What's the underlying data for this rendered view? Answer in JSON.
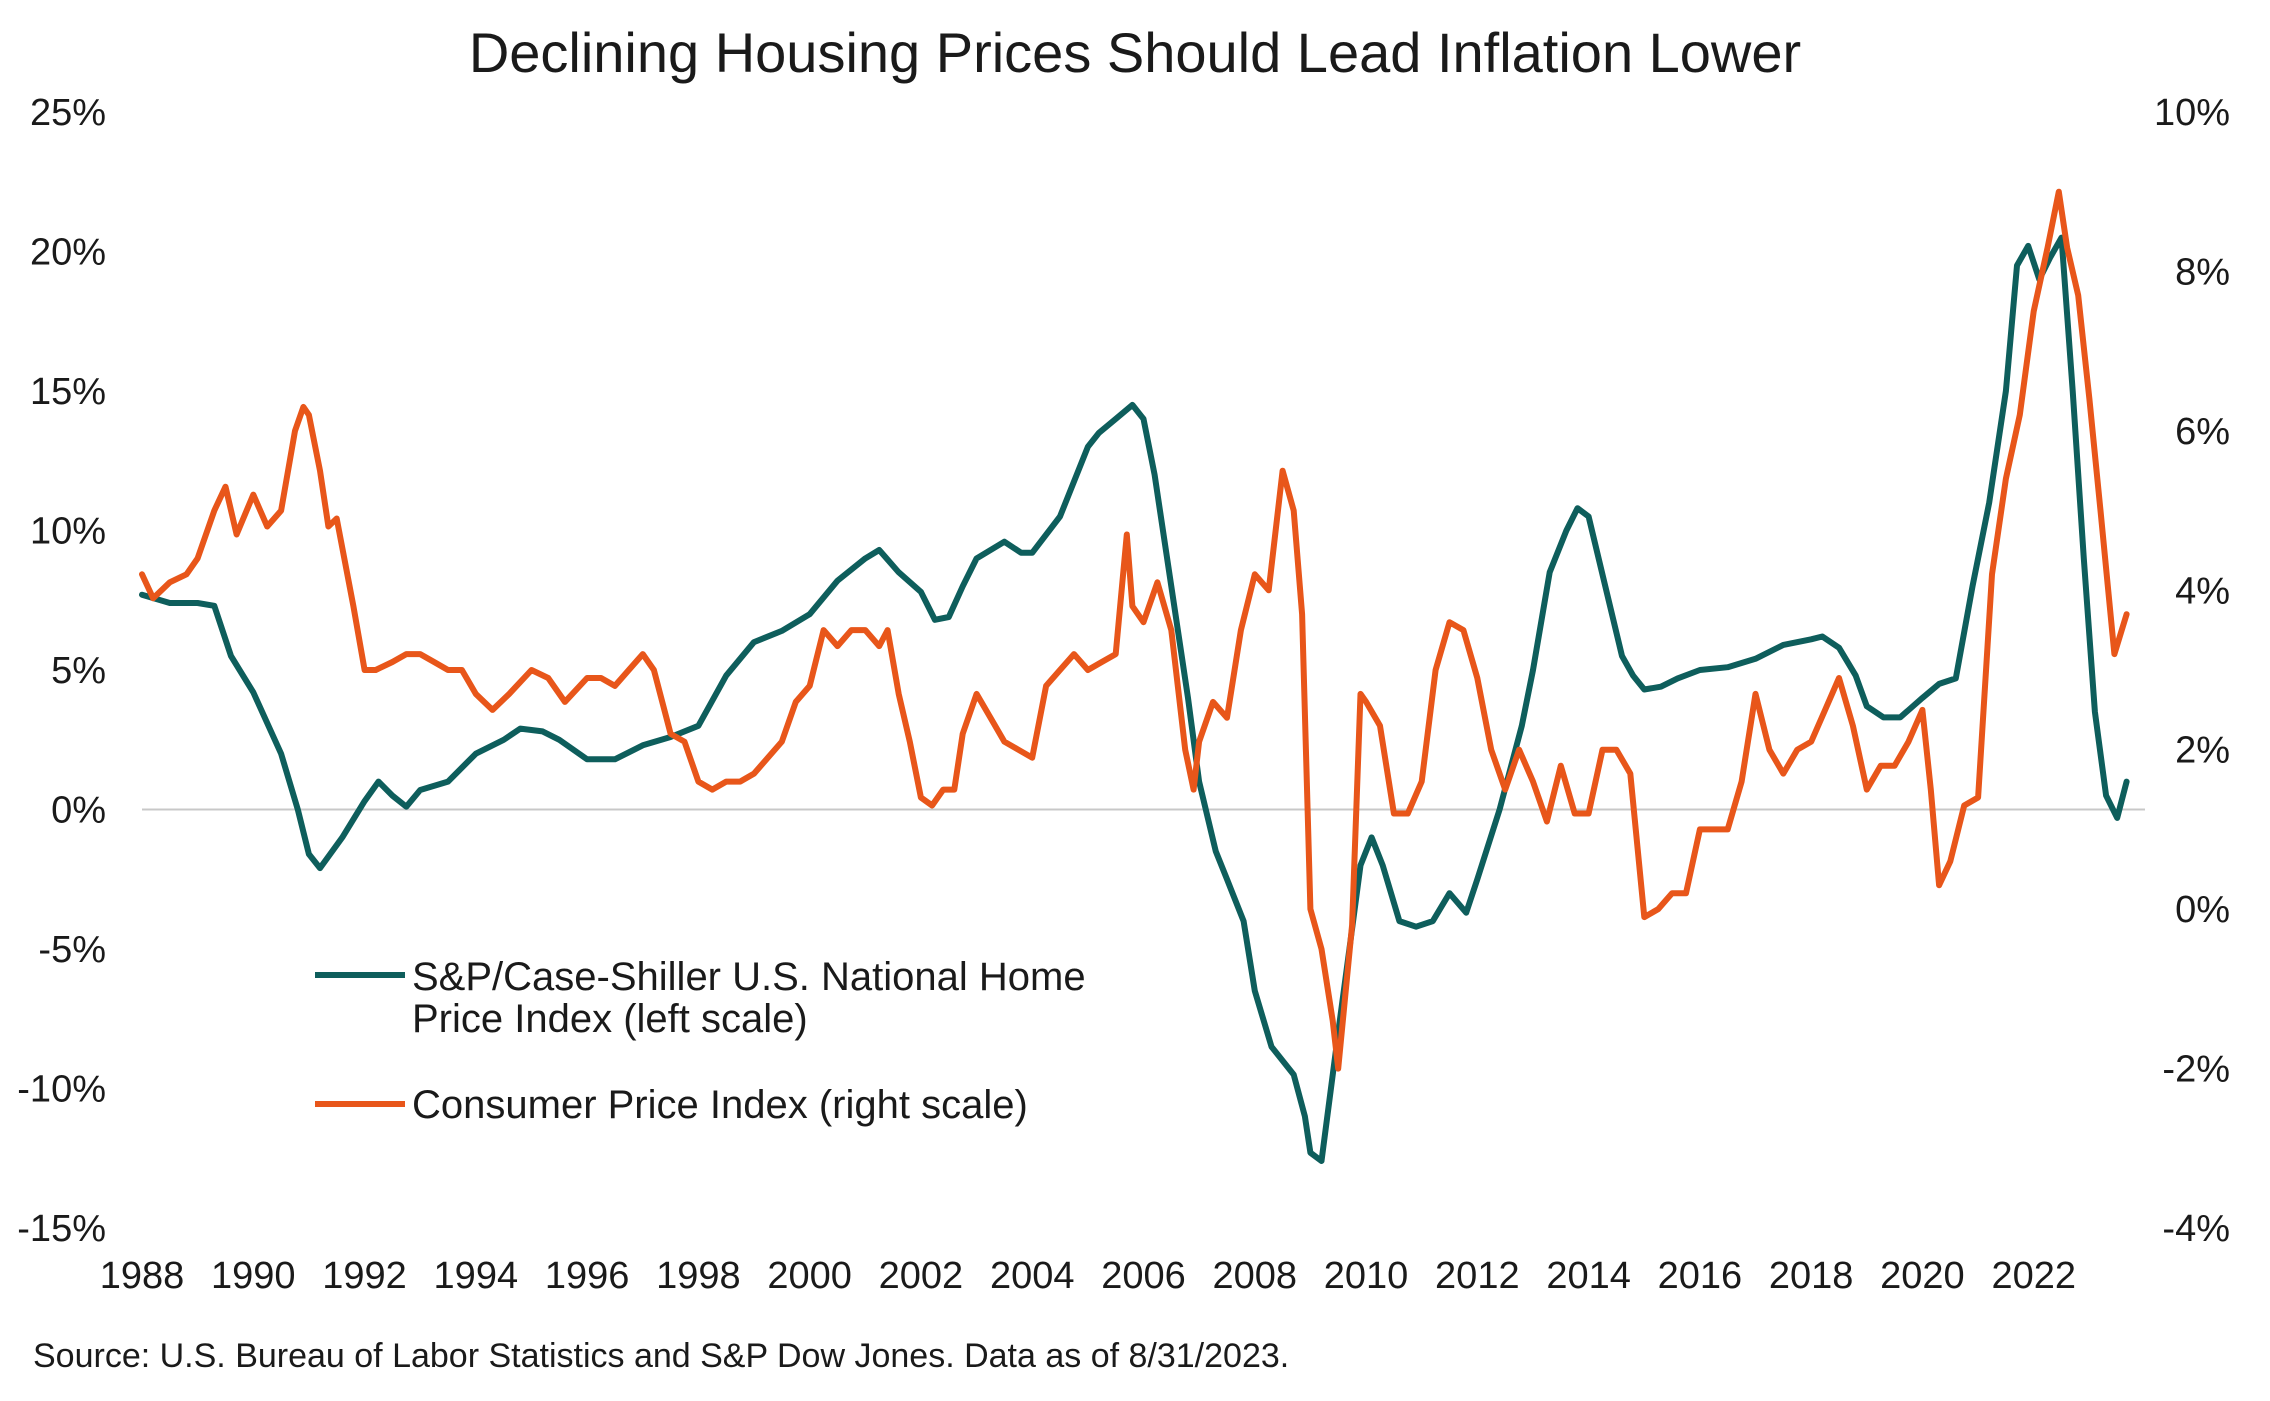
{
  "chart_data": {
    "type": "line",
    "title": "Declining Housing Prices Should Lead Inflation Lower",
    "source": "Source: U.S. Bureau of Labor Statistics and S&P Dow Jones. Data as of 8/31/2023.",
    "x_range": [
      1988,
      2023.67
    ],
    "x_ticks": [
      "1988",
      "1990",
      "1992",
      "1994",
      "1996",
      "1998",
      "2000",
      "2002",
      "2004",
      "2006",
      "2008",
      "2010",
      "2012",
      "2014",
      "2016",
      "2018",
      "2020",
      "2022"
    ],
    "y_left": {
      "range": [
        -15,
        25
      ],
      "ticks": [
        "25%",
        "20%",
        "15%",
        "10%",
        "5%",
        "0%",
        "-5%",
        "-10%",
        "-15%"
      ]
    },
    "y_right": {
      "range": [
        -4,
        10
      ],
      "ticks": [
        "10%",
        "8%",
        "6%",
        "4%",
        "2%",
        "0%",
        "-2%",
        "-4%"
      ]
    },
    "zero_line": true,
    "legend_position": "lower-left",
    "series": [
      {
        "name": "S&P/Case-Shiller U.S. National Home Price Index (left scale)",
        "legend_lines": [
          "S&P/Case-Shiller U.S. National Home",
          "Price Index (left scale)"
        ],
        "axis": "left",
        "color": "#0e5e5c",
        "points": [
          [
            1988.0,
            7.7
          ],
          [
            1988.5,
            7.4
          ],
          [
            1989.0,
            7.4
          ],
          [
            1989.3,
            7.3
          ],
          [
            1989.6,
            5.5
          ],
          [
            1990.0,
            4.2
          ],
          [
            1990.5,
            2.0
          ],
          [
            1990.8,
            0.0
          ],
          [
            1991.0,
            -1.6
          ],
          [
            1991.2,
            -2.1
          ],
          [
            1991.6,
            -1.0
          ],
          [
            1992.0,
            0.3
          ],
          [
            1992.25,
            1.0
          ],
          [
            1992.5,
            0.5
          ],
          [
            1992.75,
            0.1
          ],
          [
            1993.0,
            0.7
          ],
          [
            1993.5,
            1.0
          ],
          [
            1994.0,
            2.0
          ],
          [
            1994.5,
            2.5
          ],
          [
            1994.8,
            2.9
          ],
          [
            1995.2,
            2.8
          ],
          [
            1995.5,
            2.5
          ],
          [
            1996.0,
            1.8
          ],
          [
            1996.5,
            1.8
          ],
          [
            1997.0,
            2.3
          ],
          [
            1997.5,
            2.6
          ],
          [
            1998.0,
            3.0
          ],
          [
            1998.5,
            4.8
          ],
          [
            1999.0,
            6.0
          ],
          [
            1999.5,
            6.4
          ],
          [
            2000.0,
            7.0
          ],
          [
            2000.5,
            8.2
          ],
          [
            2001.0,
            9.0
          ],
          [
            2001.25,
            9.3
          ],
          [
            2001.6,
            8.5
          ],
          [
            2002.0,
            7.8
          ],
          [
            2002.25,
            6.8
          ],
          [
            2002.5,
            6.9
          ],
          [
            2002.75,
            8.0
          ],
          [
            2003.0,
            9.0
          ],
          [
            2003.5,
            9.6
          ],
          [
            2003.8,
            9.2
          ],
          [
            2004.0,
            9.2
          ],
          [
            2004.5,
            10.5
          ],
          [
            2005.0,
            13.0
          ],
          [
            2005.2,
            13.5
          ],
          [
            2005.5,
            14.0
          ],
          [
            2005.8,
            14.5
          ],
          [
            2006.0,
            14.0
          ],
          [
            2006.2,
            12.0
          ],
          [
            2006.5,
            8.0
          ],
          [
            2006.8,
            4.0
          ],
          [
            2007.0,
            1.0
          ],
          [
            2007.3,
            -1.5
          ],
          [
            2007.5,
            -2.5
          ],
          [
            2007.8,
            -4.0
          ],
          [
            2008.0,
            -6.5
          ],
          [
            2008.3,
            -8.5
          ],
          [
            2008.7,
            -9.5
          ],
          [
            2008.9,
            -11.0
          ],
          [
            2009.0,
            -12.3
          ],
          [
            2009.2,
            -12.6
          ],
          [
            2009.5,
            -8.0
          ],
          [
            2009.7,
            -5.0
          ],
          [
            2009.9,
            -2.0
          ],
          [
            2010.1,
            -1.0
          ],
          [
            2010.3,
            -2.0
          ],
          [
            2010.6,
            -4.0
          ],
          [
            2010.9,
            -4.2
          ],
          [
            2011.2,
            -4.0
          ],
          [
            2011.5,
            -3.0
          ],
          [
            2011.8,
            -3.7
          ],
          [
            2012.0,
            -2.5
          ],
          [
            2012.4,
            0.0
          ],
          [
            2012.8,
            3.0
          ],
          [
            2013.0,
            5.0
          ],
          [
            2013.3,
            8.5
          ],
          [
            2013.6,
            10.0
          ],
          [
            2013.8,
            10.8
          ],
          [
            2014.0,
            10.5
          ],
          [
            2014.3,
            8.0
          ],
          [
            2014.6,
            5.5
          ],
          [
            2014.8,
            4.8
          ],
          [
            2015.0,
            4.3
          ],
          [
            2015.3,
            4.4
          ],
          [
            2015.6,
            4.7
          ],
          [
            2016.0,
            5.0
          ],
          [
            2016.5,
            5.1
          ],
          [
            2017.0,
            5.4
          ],
          [
            2017.5,
            5.9
          ],
          [
            2018.0,
            6.1
          ],
          [
            2018.2,
            6.2
          ],
          [
            2018.5,
            5.8
          ],
          [
            2018.8,
            4.8
          ],
          [
            2019.0,
            3.7
          ],
          [
            2019.3,
            3.3
          ],
          [
            2019.6,
            3.3
          ],
          [
            2020.0,
            4.0
          ],
          [
            2020.3,
            4.5
          ],
          [
            2020.6,
            4.7
          ],
          [
            2020.9,
            8.0
          ],
          [
            2021.2,
            11.0
          ],
          [
            2021.5,
            15.0
          ],
          [
            2021.7,
            19.5
          ],
          [
            2021.9,
            20.2
          ],
          [
            2022.1,
            19.0
          ],
          [
            2022.3,
            19.8
          ],
          [
            2022.5,
            20.5
          ],
          [
            2022.7,
            15.0
          ],
          [
            2022.9,
            9.0
          ],
          [
            2023.1,
            3.5
          ],
          [
            2023.3,
            0.5
          ],
          [
            2023.5,
            -0.3
          ],
          [
            2023.67,
            1.0
          ]
        ]
      },
      {
        "name": "Consumer Price Index (right scale)",
        "legend_lines": [
          "Consumer Price Index (right scale)"
        ],
        "axis": "right",
        "color": "#e8561a",
        "points": [
          [
            1988.0,
            4.2
          ],
          [
            1988.2,
            3.9
          ],
          [
            1988.5,
            4.1
          ],
          [
            1988.8,
            4.2
          ],
          [
            1989.0,
            4.4
          ],
          [
            1989.3,
            5.0
          ],
          [
            1989.5,
            5.3
          ],
          [
            1989.7,
            4.7
          ],
          [
            1990.0,
            5.2
          ],
          [
            1990.25,
            4.8
          ],
          [
            1990.5,
            5.0
          ],
          [
            1990.75,
            6.0
          ],
          [
            1990.9,
            6.3
          ],
          [
            1991.0,
            6.2
          ],
          [
            1991.2,
            5.5
          ],
          [
            1991.35,
            4.8
          ],
          [
            1991.5,
            4.9
          ],
          [
            1991.8,
            3.8
          ],
          [
            1992.0,
            3.0
          ],
          [
            1992.2,
            3.0
          ],
          [
            1992.5,
            3.1
          ],
          [
            1992.75,
            3.2
          ],
          [
            1993.0,
            3.2
          ],
          [
            1993.25,
            3.1
          ],
          [
            1993.5,
            3.0
          ],
          [
            1993.75,
            3.0
          ],
          [
            1994.0,
            2.7
          ],
          [
            1994.3,
            2.5
          ],
          [
            1994.6,
            2.7
          ],
          [
            1995.0,
            3.0
          ],
          [
            1995.3,
            2.9
          ],
          [
            1995.6,
            2.6
          ],
          [
            1996.0,
            2.9
          ],
          [
            1996.25,
            2.9
          ],
          [
            1996.5,
            2.8
          ],
          [
            1996.75,
            3.0
          ],
          [
            1997.0,
            3.2
          ],
          [
            1997.2,
            3.0
          ],
          [
            1997.5,
            2.2
          ],
          [
            1997.75,
            2.1
          ],
          [
            1998.0,
            1.6
          ],
          [
            1998.25,
            1.5
          ],
          [
            1998.5,
            1.6
          ],
          [
            1998.75,
            1.6
          ],
          [
            1999.0,
            1.7
          ],
          [
            1999.5,
            2.1
          ],
          [
            1999.75,
            2.6
          ],
          [
            2000.0,
            2.8
          ],
          [
            2000.25,
            3.5
          ],
          [
            2000.5,
            3.3
          ],
          [
            2000.75,
            3.5
          ],
          [
            2001.0,
            3.5
          ],
          [
            2001.25,
            3.3
          ],
          [
            2001.4,
            3.5
          ],
          [
            2001.6,
            2.7
          ],
          [
            2001.8,
            2.1
          ],
          [
            2002.0,
            1.4
          ],
          [
            2002.2,
            1.3
          ],
          [
            2002.4,
            1.5
          ],
          [
            2002.6,
            1.5
          ],
          [
            2002.75,
            2.2
          ],
          [
            2003.0,
            2.7
          ],
          [
            2003.25,
            2.4
          ],
          [
            2003.5,
            2.1
          ],
          [
            2003.75,
            2.0
          ],
          [
            2004.0,
            1.9
          ],
          [
            2004.25,
            2.8
          ],
          [
            2004.5,
            3.0
          ],
          [
            2004.75,
            3.2
          ],
          [
            2005.0,
            3.0
          ],
          [
            2005.25,
            3.1
          ],
          [
            2005.5,
            3.2
          ],
          [
            2005.7,
            4.7
          ],
          [
            2005.8,
            3.8
          ],
          [
            2006.0,
            3.6
          ],
          [
            2006.25,
            4.1
          ],
          [
            2006.5,
            3.5
          ],
          [
            2006.75,
            2.0
          ],
          [
            2006.9,
            1.5
          ],
          [
            2007.0,
            2.1
          ],
          [
            2007.25,
            2.6
          ],
          [
            2007.5,
            2.4
          ],
          [
            2007.75,
            3.5
          ],
          [
            2008.0,
            4.2
          ],
          [
            2008.25,
            4.0
          ],
          [
            2008.5,
            5.5
          ],
          [
            2008.7,
            5.0
          ],
          [
            2008.85,
            3.7
          ],
          [
            2009.0,
            0.0
          ],
          [
            2009.2,
            -0.5
          ],
          [
            2009.4,
            -1.4
          ],
          [
            2009.5,
            -2.0
          ],
          [
            2009.75,
            -0.2
          ],
          [
            2009.9,
            2.7
          ],
          [
            2010.0,
            2.6
          ],
          [
            2010.25,
            2.3
          ],
          [
            2010.5,
            1.2
          ],
          [
            2010.75,
            1.2
          ],
          [
            2011.0,
            1.6
          ],
          [
            2011.25,
            3.0
          ],
          [
            2011.5,
            3.6
          ],
          [
            2011.75,
            3.5
          ],
          [
            2012.0,
            2.9
          ],
          [
            2012.25,
            2.0
          ],
          [
            2012.5,
            1.5
          ],
          [
            2012.75,
            2.0
          ],
          [
            2013.0,
            1.6
          ],
          [
            2013.25,
            1.1
          ],
          [
            2013.5,
            1.8
          ],
          [
            2013.75,
            1.2
          ],
          [
            2014.0,
            1.2
          ],
          [
            2014.25,
            2.0
          ],
          [
            2014.5,
            2.0
          ],
          [
            2014.75,
            1.7
          ],
          [
            2015.0,
            -0.1
          ],
          [
            2015.25,
            0.0
          ],
          [
            2015.5,
            0.2
          ],
          [
            2015.75,
            0.2
          ],
          [
            2016.0,
            1.0
          ],
          [
            2016.25,
            1.0
          ],
          [
            2016.5,
            1.0
          ],
          [
            2016.75,
            1.6
          ],
          [
            2017.0,
            2.7
          ],
          [
            2017.25,
            2.0
          ],
          [
            2017.5,
            1.7
          ],
          [
            2017.75,
            2.0
          ],
          [
            2018.0,
            2.1
          ],
          [
            2018.25,
            2.5
          ],
          [
            2018.5,
            2.9
          ],
          [
            2018.75,
            2.3
          ],
          [
            2019.0,
            1.5
          ],
          [
            2019.25,
            1.8
          ],
          [
            2019.5,
            1.8
          ],
          [
            2019.75,
            2.1
          ],
          [
            2020.0,
            2.5
          ],
          [
            2020.15,
            1.5
          ],
          [
            2020.3,
            0.3
          ],
          [
            2020.5,
            0.6
          ],
          [
            2020.75,
            1.3
          ],
          [
            2021.0,
            1.4
          ],
          [
            2021.25,
            4.2
          ],
          [
            2021.5,
            5.4
          ],
          [
            2021.75,
            6.2
          ],
          [
            2022.0,
            7.5
          ],
          [
            2022.25,
            8.3
          ],
          [
            2022.45,
            9.0
          ],
          [
            2022.6,
            8.3
          ],
          [
            2022.8,
            7.7
          ],
          [
            2023.0,
            6.4
          ],
          [
            2023.2,
            5.0
          ],
          [
            2023.45,
            3.2
          ],
          [
            2023.67,
            3.7
          ]
        ]
      }
    ]
  }
}
